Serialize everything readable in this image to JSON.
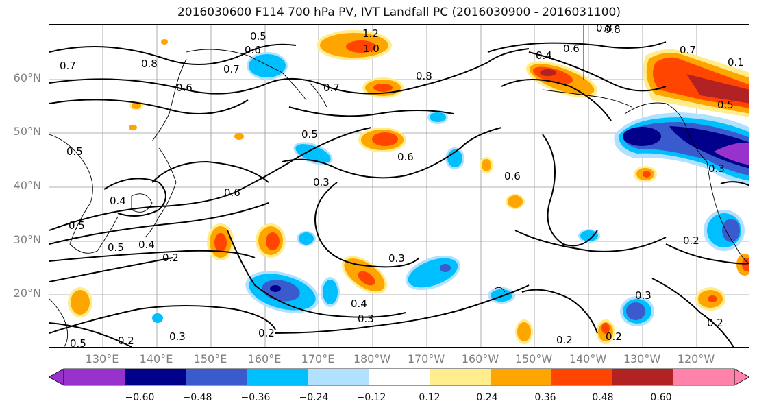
{
  "title": "2016030600 F114 700 hPa PV, IVT Landfall PC (2016030900 - 2016031100)",
  "lat_labels": [
    "60°N",
    "50°N",
    "40°N",
    "30°N",
    "20°N"
  ],
  "lon_labels": [
    "130°E",
    "140°E",
    "150°E",
    "160°E",
    "170°E",
    "180°W",
    "170°W",
    "160°W",
    "150°W",
    "140°W",
    "130°W",
    "120°W"
  ],
  "contour_labels": [
    "0.5",
    "0.6",
    "0.7",
    "0.8",
    "1.2",
    "1.0",
    "0.8",
    "0.4",
    "0.6",
    "0.7",
    "0.8",
    "0.7",
    "0.7",
    "0.6",
    "0.5",
    "0.6",
    "0.5",
    "0.5",
    "0.6",
    "0.3",
    "0.6",
    "0.4",
    "0.5",
    "0.5",
    "0.4",
    "0.2",
    "0.3",
    "0.4",
    "0.3",
    "0.2",
    "0.2",
    "0.3",
    "0.2",
    "0.3",
    "0.2",
    "0.5",
    "0.3",
    "0.2",
    "0.2",
    "0.8",
    "0.1"
  ],
  "colorbar": {
    "ticks": [
      "−0.60",
      "−0.48",
      "−0.36",
      "−0.24",
      "−0.12",
      "0.12",
      "0.24",
      "0.36",
      "0.48",
      "0.60"
    ],
    "colors": [
      "#9932cc",
      "#00008b",
      "#3a5bcd",
      "#00bfff",
      "#b0e2ff",
      "#ffffff",
      "#ffec8b",
      "#ffa500",
      "#ff4500",
      "#b22222",
      "#ff82ab"
    ]
  }
}
